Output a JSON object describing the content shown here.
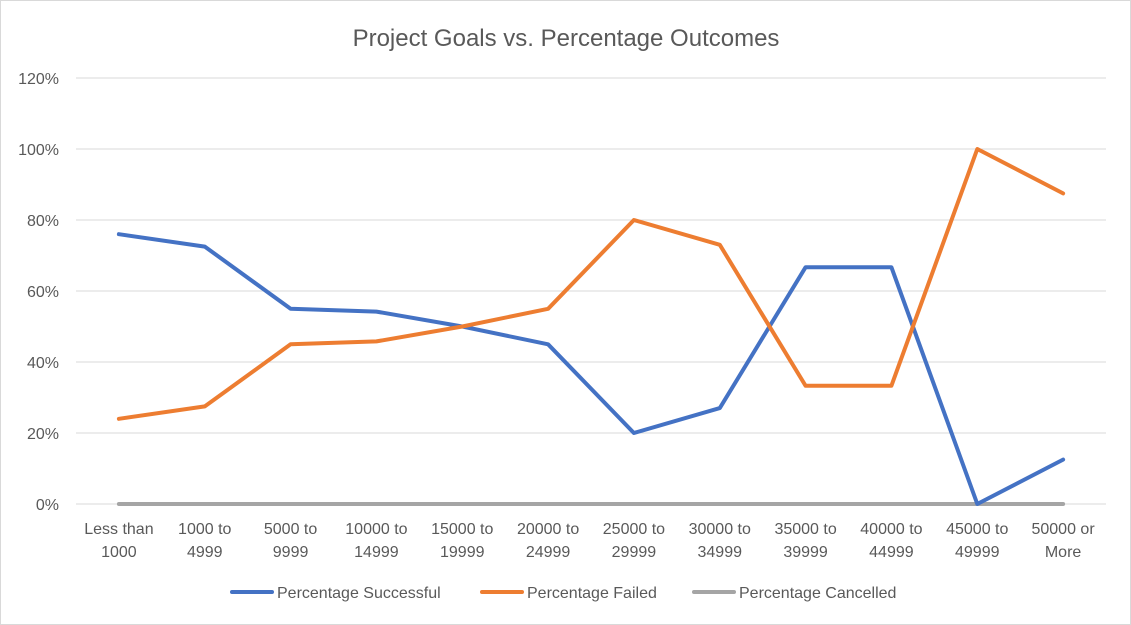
{
  "chart_data": {
    "type": "line",
    "title": "Project Goals vs. Percentage Outcomes",
    "xlabel": "",
    "ylabel": "",
    "categories": [
      [
        "Less than",
        "1000"
      ],
      [
        "1000 to",
        "4999"
      ],
      [
        "5000 to",
        "9999"
      ],
      [
        "10000 to",
        "14999"
      ],
      [
        "15000 to",
        "19999"
      ],
      [
        "20000 to",
        "24999"
      ],
      [
        "25000 to",
        "29999"
      ],
      [
        "30000 to",
        "34999"
      ],
      [
        "35000 to",
        "39999"
      ],
      [
        "40000 to",
        "44999"
      ],
      [
        "45000 to",
        "49999"
      ],
      [
        "50000 or",
        "More"
      ]
    ],
    "ylim": [
      0,
      1.2
    ],
    "yticks": [
      0,
      0.2,
      0.4,
      0.6,
      0.8,
      1.0,
      1.2
    ],
    "ytick_labels": [
      "0%",
      "20%",
      "40%",
      "60%",
      "80%",
      "100%",
      "120%"
    ],
    "grid": true,
    "legend_position": "bottom",
    "series": [
      {
        "name": "Percentage Successful",
        "color": "#4472c4",
        "values": [
          0.76,
          0.725,
          0.55,
          0.542,
          0.5,
          0.45,
          0.2,
          0.27,
          0.667,
          0.667,
          0.0,
          0.125
        ]
      },
      {
        "name": "Percentage Failed",
        "color": "#ed7d31",
        "values": [
          0.24,
          0.275,
          0.45,
          0.458,
          0.5,
          0.55,
          0.8,
          0.73,
          0.333,
          0.333,
          1.0,
          0.875
        ]
      },
      {
        "name": "Percentage Cancelled",
        "color": "#a5a5a5",
        "values": [
          0,
          0,
          0,
          0,
          0,
          0,
          0,
          0,
          0,
          0,
          0,
          0
        ]
      }
    ]
  }
}
